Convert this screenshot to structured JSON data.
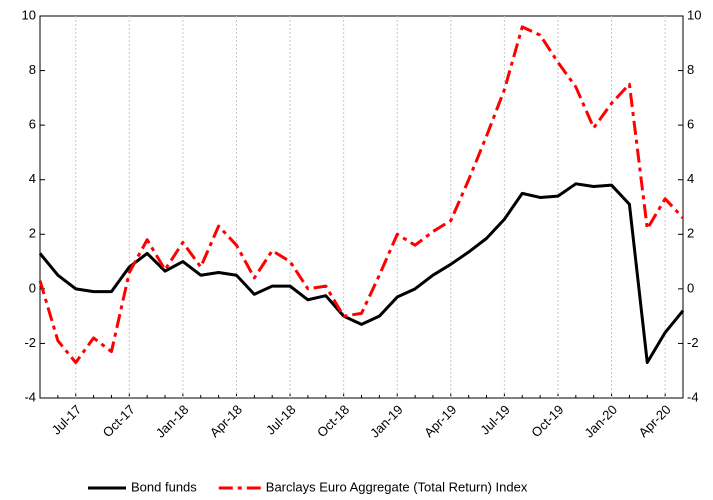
{
  "chart_data": {
    "type": "line",
    "categories": [
      null,
      null,
      "Jul-17",
      null,
      null,
      "Oct-17",
      null,
      null,
      "Jan-18",
      null,
      null,
      "Apr-18",
      null,
      null,
      "Jul-18",
      null,
      null,
      "Oct-18",
      null,
      null,
      "Jan-19",
      null,
      null,
      "Apr-19",
      null,
      null,
      "Jul-19",
      null,
      null,
      "Oct-19",
      null,
      null,
      "Jan-20",
      null,
      null,
      "Apr-20",
      null
    ],
    "series": [
      {
        "name": "Bond funds",
        "color": "#000000",
        "dash": "solid",
        "values": [
          1.3,
          0.5,
          0,
          -0.1,
          -0.1,
          0.8,
          1.3,
          0.65,
          1.0,
          0.5,
          0.6,
          0.5,
          -0.2,
          0.1,
          0.1,
          -0.4,
          -0.25,
          -1.0,
          -1.3,
          -1.0,
          -0.3,
          0,
          0.5,
          0.9,
          1.35,
          1.85,
          2.55,
          3.5,
          3.35,
          3.4,
          3.85,
          3.75,
          3.8,
          3.1,
          -2.7,
          -1.6,
          -0.8
        ]
      },
      {
        "name": "Barclays Euro Aggregate (Total Return) Index",
        "color": "#ff0000",
        "dash": "dashdot",
        "values": [
          0.3,
          -1.9,
          -2.7,
          -1.8,
          -2.3,
          0.6,
          1.8,
          0.7,
          1.7,
          0.8,
          2.3,
          1.6,
          0.4,
          1.4,
          1.0,
          0,
          0.1,
          -1.0,
          -0.9,
          0.5,
          2.0,
          1.6,
          2.1,
          2.5,
          4.0,
          5.6,
          7.3,
          9.6,
          9.3,
          8.3,
          7.4,
          5.9,
          6.8,
          7.5,
          2.2,
          3.3,
          2.6
        ]
      }
    ],
    "ylim": [
      -4,
      10
    ],
    "yticks": [
      -4,
      -2,
      0,
      2,
      4,
      6,
      8,
      10
    ],
    "y2lim": [
      -4,
      10
    ],
    "y2ticks": [
      -4,
      -2,
      0,
      2,
      4,
      6,
      8,
      10
    ],
    "grid": true,
    "legend": "bottom"
  }
}
